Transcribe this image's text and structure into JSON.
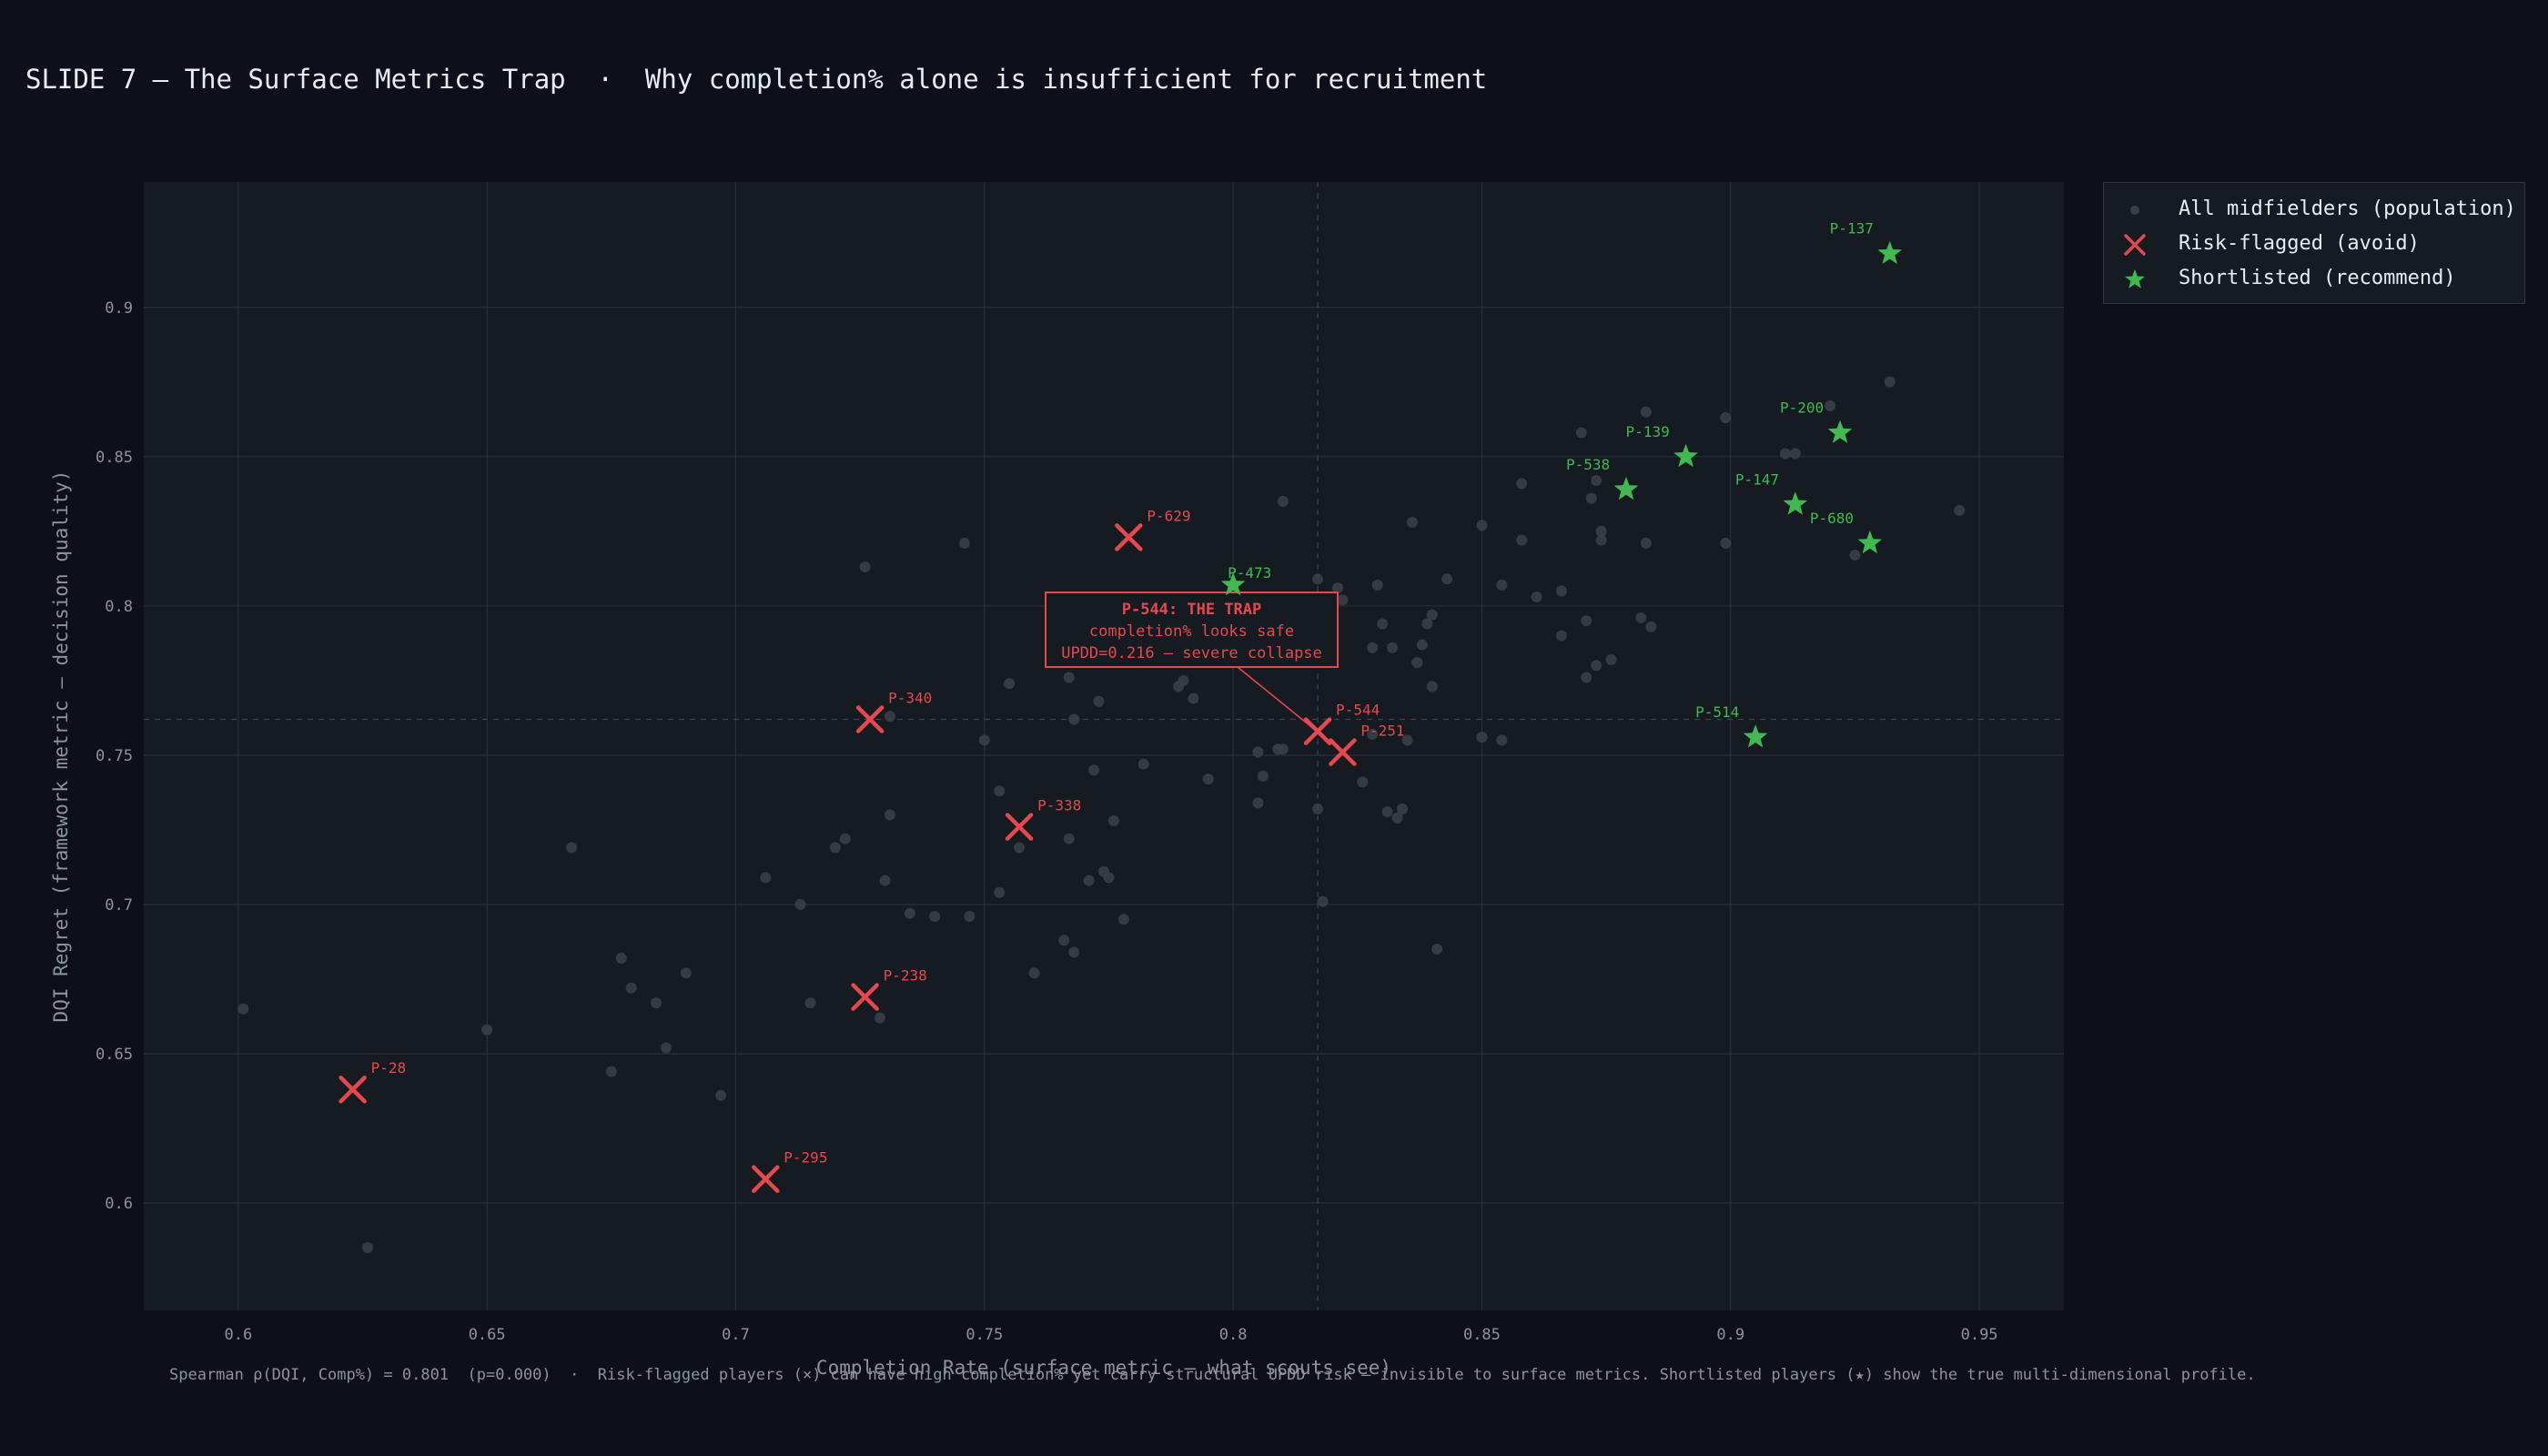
{
  "slide": {
    "title": "SLIDE 7 — The Surface Metrics Trap  ·  Why completion% alone is insufficient for recruitment",
    "footnote": "Spearman ρ(DQI, Comp%) = 0.801  (p=0.000)  ·  Risk-flagged players (×) can have high completion% yet carry structural UPDD risk — invisible to surface metrics. Shortlisted players (★) show the true multi-dimensional profile."
  },
  "legend": {
    "items": [
      {
        "label": "All midfielders (population)",
        "symbol": "circle",
        "color": "#3a3f47"
      },
      {
        "label": "Risk-flagged (avoid)",
        "symbol": "x",
        "color": "#e5484d"
      },
      {
        "label": "Shortlisted (recommend)",
        "symbol": "star",
        "color": "#3fb950"
      }
    ]
  },
  "annotation": {
    "lines": [
      "P-544: THE TRAP",
      "completion% looks safe",
      "UPDD=0.216 — severe collapse"
    ],
    "color": "#e5484d",
    "target": "P-544"
  },
  "colors": {
    "background": "#0d1117",
    "plot_bg": "#161b22",
    "grid": "#2a3038",
    "axis_text": "#8b949e",
    "population": "#3a3f47",
    "risk": "#e5484d",
    "shortlist": "#3fb950"
  },
  "chart_data": {
    "type": "scatter",
    "title": "",
    "xlabel": "Completion Rate  (surface metric — what scouts see)",
    "ylabel": "DQI Regret  (framework metric — decision quality)",
    "xlim": [
      0.581,
      0.967
    ],
    "ylim": [
      0.564,
      0.942
    ],
    "xticks": [
      0.6,
      0.65,
      0.7,
      0.75,
      0.8,
      0.85,
      0.9,
      0.95
    ],
    "yticks": [
      0.6,
      0.65,
      0.7,
      0.75,
      0.8,
      0.85,
      0.9
    ],
    "grid": true,
    "legend_position": "outside-top-right",
    "reference_lines": {
      "x": 0.817,
      "y": 0.762
    },
    "series": [
      {
        "name": "All midfielders (population)",
        "marker": "circle",
        "points": [
          [
            0.601,
            0.665
          ],
          [
            0.626,
            0.585
          ],
          [
            0.65,
            0.658
          ],
          [
            0.667,
            0.719
          ],
          [
            0.675,
            0.644
          ],
          [
            0.677,
            0.682
          ],
          [
            0.679,
            0.672
          ],
          [
            0.684,
            0.667
          ],
          [
            0.686,
            0.652
          ],
          [
            0.69,
            0.677
          ],
          [
            0.697,
            0.636
          ],
          [
            0.706,
            0.709
          ],
          [
            0.713,
            0.7
          ],
          [
            0.715,
            0.667
          ],
          [
            0.72,
            0.719
          ],
          [
            0.722,
            0.722
          ],
          [
            0.726,
            0.813
          ],
          [
            0.729,
            0.662
          ],
          [
            0.73,
            0.708
          ],
          [
            0.731,
            0.73
          ],
          [
            0.731,
            0.763
          ],
          [
            0.735,
            0.697
          ],
          [
            0.74,
            0.696
          ],
          [
            0.746,
            0.821
          ],
          [
            0.747,
            0.696
          ],
          [
            0.75,
            0.755
          ],
          [
            0.753,
            0.738
          ],
          [
            0.753,
            0.704
          ],
          [
            0.755,
            0.774
          ],
          [
            0.757,
            0.719
          ],
          [
            0.76,
            0.677
          ],
          [
            0.766,
            0.688
          ],
          [
            0.767,
            0.776
          ],
          [
            0.767,
            0.722
          ],
          [
            0.768,
            0.762
          ],
          [
            0.768,
            0.684
          ],
          [
            0.771,
            0.708
          ],
          [
            0.772,
            0.745
          ],
          [
            0.773,
            0.768
          ],
          [
            0.774,
            0.711
          ],
          [
            0.775,
            0.709
          ],
          [
            0.776,
            0.728
          ],
          [
            0.778,
            0.695
          ],
          [
            0.782,
            0.747
          ],
          [
            0.789,
            0.773
          ],
          [
            0.79,
            0.775
          ],
          [
            0.792,
            0.769
          ],
          [
            0.795,
            0.742
          ],
          [
            0.805,
            0.751
          ],
          [
            0.805,
            0.734
          ],
          [
            0.806,
            0.743
          ],
          [
            0.809,
            0.752
          ],
          [
            0.81,
            0.752
          ],
          [
            0.81,
            0.835
          ],
          [
            0.817,
            0.809
          ],
          [
            0.818,
            0.701
          ],
          [
            0.817,
            0.732
          ],
          [
            0.821,
            0.806
          ],
          [
            0.822,
            0.802
          ],
          [
            0.826,
            0.741
          ],
          [
            0.828,
            0.786
          ],
          [
            0.828,
            0.757
          ],
          [
            0.829,
            0.807
          ],
          [
            0.83,
            0.794
          ],
          [
            0.831,
            0.731
          ],
          [
            0.832,
            0.786
          ],
          [
            0.833,
            0.729
          ],
          [
            0.834,
            0.732
          ],
          [
            0.835,
            0.755
          ],
          [
            0.836,
            0.828
          ],
          [
            0.837,
            0.781
          ],
          [
            0.838,
            0.787
          ],
          [
            0.839,
            0.794
          ],
          [
            0.84,
            0.797
          ],
          [
            0.84,
            0.773
          ],
          [
            0.841,
            0.685
          ],
          [
            0.843,
            0.809
          ],
          [
            0.85,
            0.827
          ],
          [
            0.85,
            0.756
          ],
          [
            0.854,
            0.807
          ],
          [
            0.854,
            0.755
          ],
          [
            0.858,
            0.822
          ],
          [
            0.858,
            0.841
          ],
          [
            0.861,
            0.803
          ],
          [
            0.866,
            0.79
          ],
          [
            0.866,
            0.805
          ],
          [
            0.87,
            0.858
          ],
          [
            0.871,
            0.776
          ],
          [
            0.871,
            0.795
          ],
          [
            0.872,
            0.836
          ],
          [
            0.873,
            0.78
          ],
          [
            0.873,
            0.842
          ],
          [
            0.874,
            0.822
          ],
          [
            0.874,
            0.825
          ],
          [
            0.876,
            0.782
          ],
          [
            0.882,
            0.796
          ],
          [
            0.883,
            0.821
          ],
          [
            0.883,
            0.865
          ],
          [
            0.884,
            0.793
          ],
          [
            0.899,
            0.863
          ],
          [
            0.899,
            0.821
          ],
          [
            0.911,
            0.851
          ],
          [
            0.913,
            0.851
          ],
          [
            0.92,
            0.867
          ],
          [
            0.925,
            0.817
          ],
          [
            0.932,
            0.875
          ],
          [
            0.946,
            0.832
          ]
        ]
      },
      {
        "name": "Risk-flagged (avoid)",
        "marker": "x",
        "points": [
          {
            "label": "P-629",
            "x": 0.779,
            "y": 0.823
          },
          {
            "label": "P-340",
            "x": 0.727,
            "y": 0.762
          },
          {
            "label": "P-544",
            "x": 0.817,
            "y": 0.758
          },
          {
            "label": "P-251",
            "x": 0.822,
            "y": 0.751
          },
          {
            "label": "P-338",
            "x": 0.757,
            "y": 0.726
          },
          {
            "label": "P-238",
            "x": 0.726,
            "y": 0.669
          },
          {
            "label": "P-28",
            "x": 0.623,
            "y": 0.638
          },
          {
            "label": "P-295",
            "x": 0.706,
            "y": 0.608
          }
        ]
      },
      {
        "name": "Shortlisted (recommend)",
        "marker": "star",
        "points": [
          {
            "label": "P-137",
            "x": 0.932,
            "y": 0.918
          },
          {
            "label": "P-200",
            "x": 0.922,
            "y": 0.858
          },
          {
            "label": "P-139",
            "x": 0.891,
            "y": 0.85
          },
          {
            "label": "P-538",
            "x": 0.879,
            "y": 0.839
          },
          {
            "label": "P-147",
            "x": 0.913,
            "y": 0.834
          },
          {
            "label": "P-680",
            "x": 0.928,
            "y": 0.821
          },
          {
            "label": "P-473",
            "x": 0.8,
            "y": 0.807
          },
          {
            "label": "P-514",
            "x": 0.905,
            "y": 0.756
          }
        ]
      }
    ]
  }
}
